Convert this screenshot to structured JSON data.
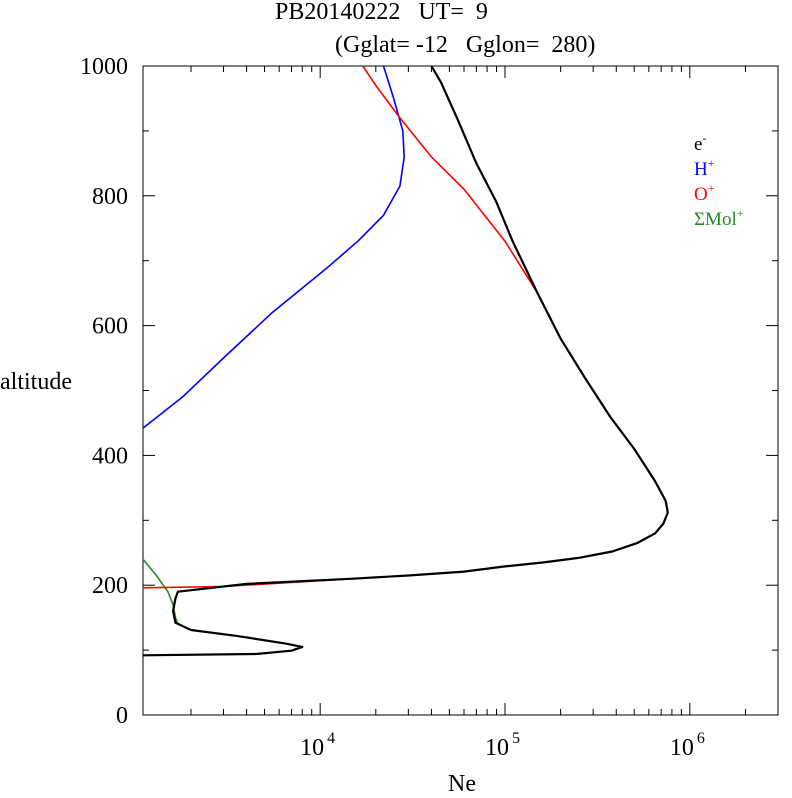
{
  "chart_data": {
    "type": "line",
    "title": "PB20140222   UT=  9",
    "subtitle": "(Gglat= -12   Gglon=  280)",
    "xlabel": "Ne",
    "ylabel": "altitude",
    "x_scale": "log",
    "xlim": [
      1100,
      3000000
    ],
    "ylim": [
      0,
      1000
    ],
    "y_ticks": [
      0,
      200,
      400,
      600,
      800,
      1000
    ],
    "x_tick_labels": [
      {
        "base": "10",
        "exp": "4"
      },
      {
        "base": "10",
        "exp": "5"
      },
      {
        "base": "10",
        "exp": "6"
      }
    ],
    "legend_position": "top-right",
    "grid": false,
    "series": [
      {
        "name": "e",
        "name_sup": "-",
        "color": "#000000",
        "points": [
          [
            1100,
            92
          ],
          [
            4500,
            94
          ],
          [
            7000,
            99
          ],
          [
            8000,
            105
          ],
          [
            6500,
            110
          ],
          [
            3500,
            122
          ],
          [
            2000,
            131
          ],
          [
            1650,
            142
          ],
          [
            1600,
            160
          ],
          [
            1650,
            180
          ],
          [
            1700,
            190
          ],
          [
            4000,
            202
          ],
          [
            15000,
            210
          ],
          [
            30000,
            215
          ],
          [
            60000,
            221
          ],
          [
            100000,
            229
          ],
          [
            160000,
            235
          ],
          [
            250000,
            242
          ],
          [
            380000,
            252
          ],
          [
            520000,
            265
          ],
          [
            650000,
            280
          ],
          [
            720000,
            295
          ],
          [
            760000,
            312
          ],
          [
            740000,
            330
          ],
          [
            650000,
            360
          ],
          [
            500000,
            410
          ],
          [
            370000,
            460
          ],
          [
            270000,
            520
          ],
          [
            200000,
            580
          ],
          [
            150000,
            650
          ],
          [
            110000,
            730
          ],
          [
            90000,
            790
          ],
          [
            70000,
            850
          ],
          [
            55000,
            920
          ],
          [
            45000,
            975
          ],
          [
            40000,
            1000
          ]
        ]
      },
      {
        "name": "H",
        "name_sup": "+",
        "color": "#0000ff",
        "points": [
          [
            1100,
            442
          ],
          [
            1800,
            490
          ],
          [
            3000,
            550
          ],
          [
            5500,
            620
          ],
          [
            11000,
            690
          ],
          [
            16000,
            730
          ],
          [
            22000,
            770
          ],
          [
            27000,
            815
          ],
          [
            28500,
            860
          ],
          [
            28000,
            900
          ],
          [
            25000,
            950
          ],
          [
            22000,
            1000
          ]
        ]
      },
      {
        "name": "O",
        "name_sup": "+",
        "color": "#ff0000",
        "points": [
          [
            1100,
            196
          ],
          [
            3000,
            198
          ],
          [
            10000,
            207
          ],
          [
            30000,
            215
          ],
          [
            60000,
            221
          ],
          [
            100000,
            229
          ],
          [
            160000,
            235
          ],
          [
            250000,
            242
          ],
          [
            380000,
            252
          ],
          [
            520000,
            265
          ],
          [
            650000,
            280
          ],
          [
            720000,
            295
          ],
          [
            760000,
            312
          ],
          [
            740000,
            330
          ],
          [
            650000,
            360
          ],
          [
            500000,
            410
          ],
          [
            370000,
            460
          ],
          [
            270000,
            520
          ],
          [
            200000,
            580
          ],
          [
            150000,
            650
          ],
          [
            100000,
            730
          ],
          [
            60000,
            810
          ],
          [
            40000,
            860
          ],
          [
            27000,
            920
          ],
          [
            20000,
            970
          ],
          [
            17000,
            1000
          ]
        ]
      },
      {
        "name": "ΣMol",
        "name_sup": "+",
        "color": "#228b22",
        "points": [
          [
            1100,
            240
          ],
          [
            1300,
            215
          ],
          [
            1500,
            190
          ],
          [
            1600,
            170
          ],
          [
            1650,
            150
          ],
          [
            1700,
            140
          ]
        ]
      }
    ]
  }
}
